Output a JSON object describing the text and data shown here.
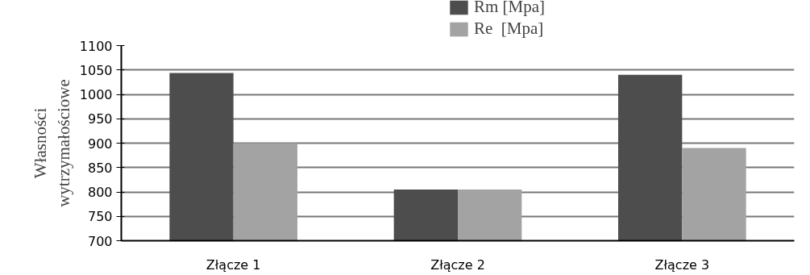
{
  "chart_data": {
    "type": "bar",
    "ylabel": "Własności\nwytrzymałościowe",
    "categories": [
      "Złącze 1",
      "Złącze 2",
      "Złącze 3"
    ],
    "series": [
      {
        "name": "Rm [Mpa]",
        "color": "#4d4d4d",
        "values": [
          1044,
          805,
          1040
        ]
      },
      {
        "name": "Re  [Mpa]",
        "color": "#a3a3a3",
        "values": [
          900,
          805,
          890
        ]
      }
    ],
    "ylim": [
      700,
      1100
    ],
    "yticks": [
      700,
      750,
      800,
      850,
      900,
      950,
      1000,
      1050,
      1100
    ],
    "grid": "y",
    "legend": "top"
  }
}
